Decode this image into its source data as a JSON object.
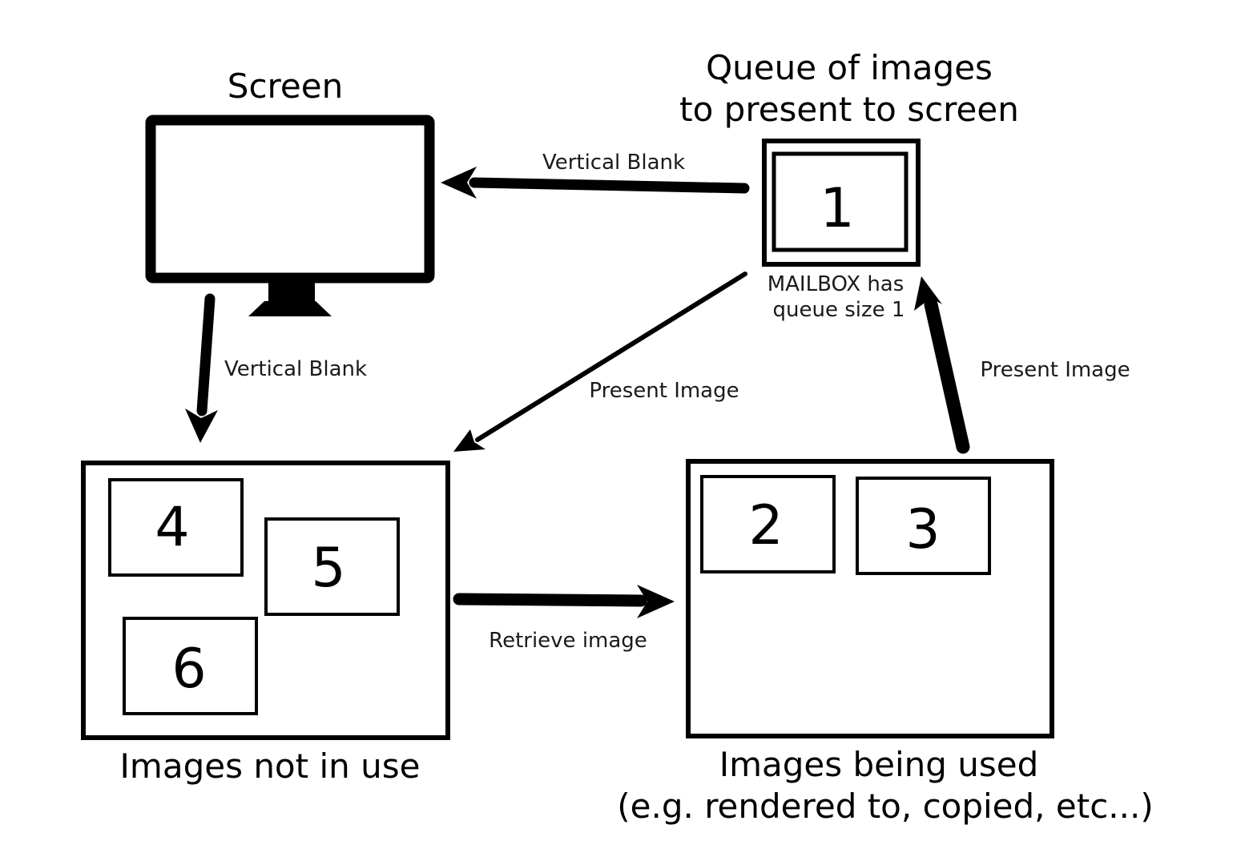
{
  "diagram": {
    "screen": {
      "title": "Screen"
    },
    "queue": {
      "title_line1": "Queue of images",
      "title_line2": "to present to screen",
      "image": "1",
      "note_line1": "MAILBOX has",
      "note_line2": "queue size 1"
    },
    "not_in_use": {
      "label": "Images not in use",
      "images": [
        "4",
        "5",
        "6"
      ]
    },
    "in_use": {
      "label_line1": "Images being used",
      "label_line2": "(e.g. rendered to, copied, etc...)",
      "images": [
        "2",
        "3"
      ]
    },
    "edges": {
      "queue_to_screen": "Vertical Blank",
      "screen_to_not_in_use": "Vertical Blank",
      "queue_to_not_in_use": "Present Image",
      "not_in_use_to_in_use": "Retrieve image",
      "in_use_to_queue": "Present Image"
    }
  }
}
